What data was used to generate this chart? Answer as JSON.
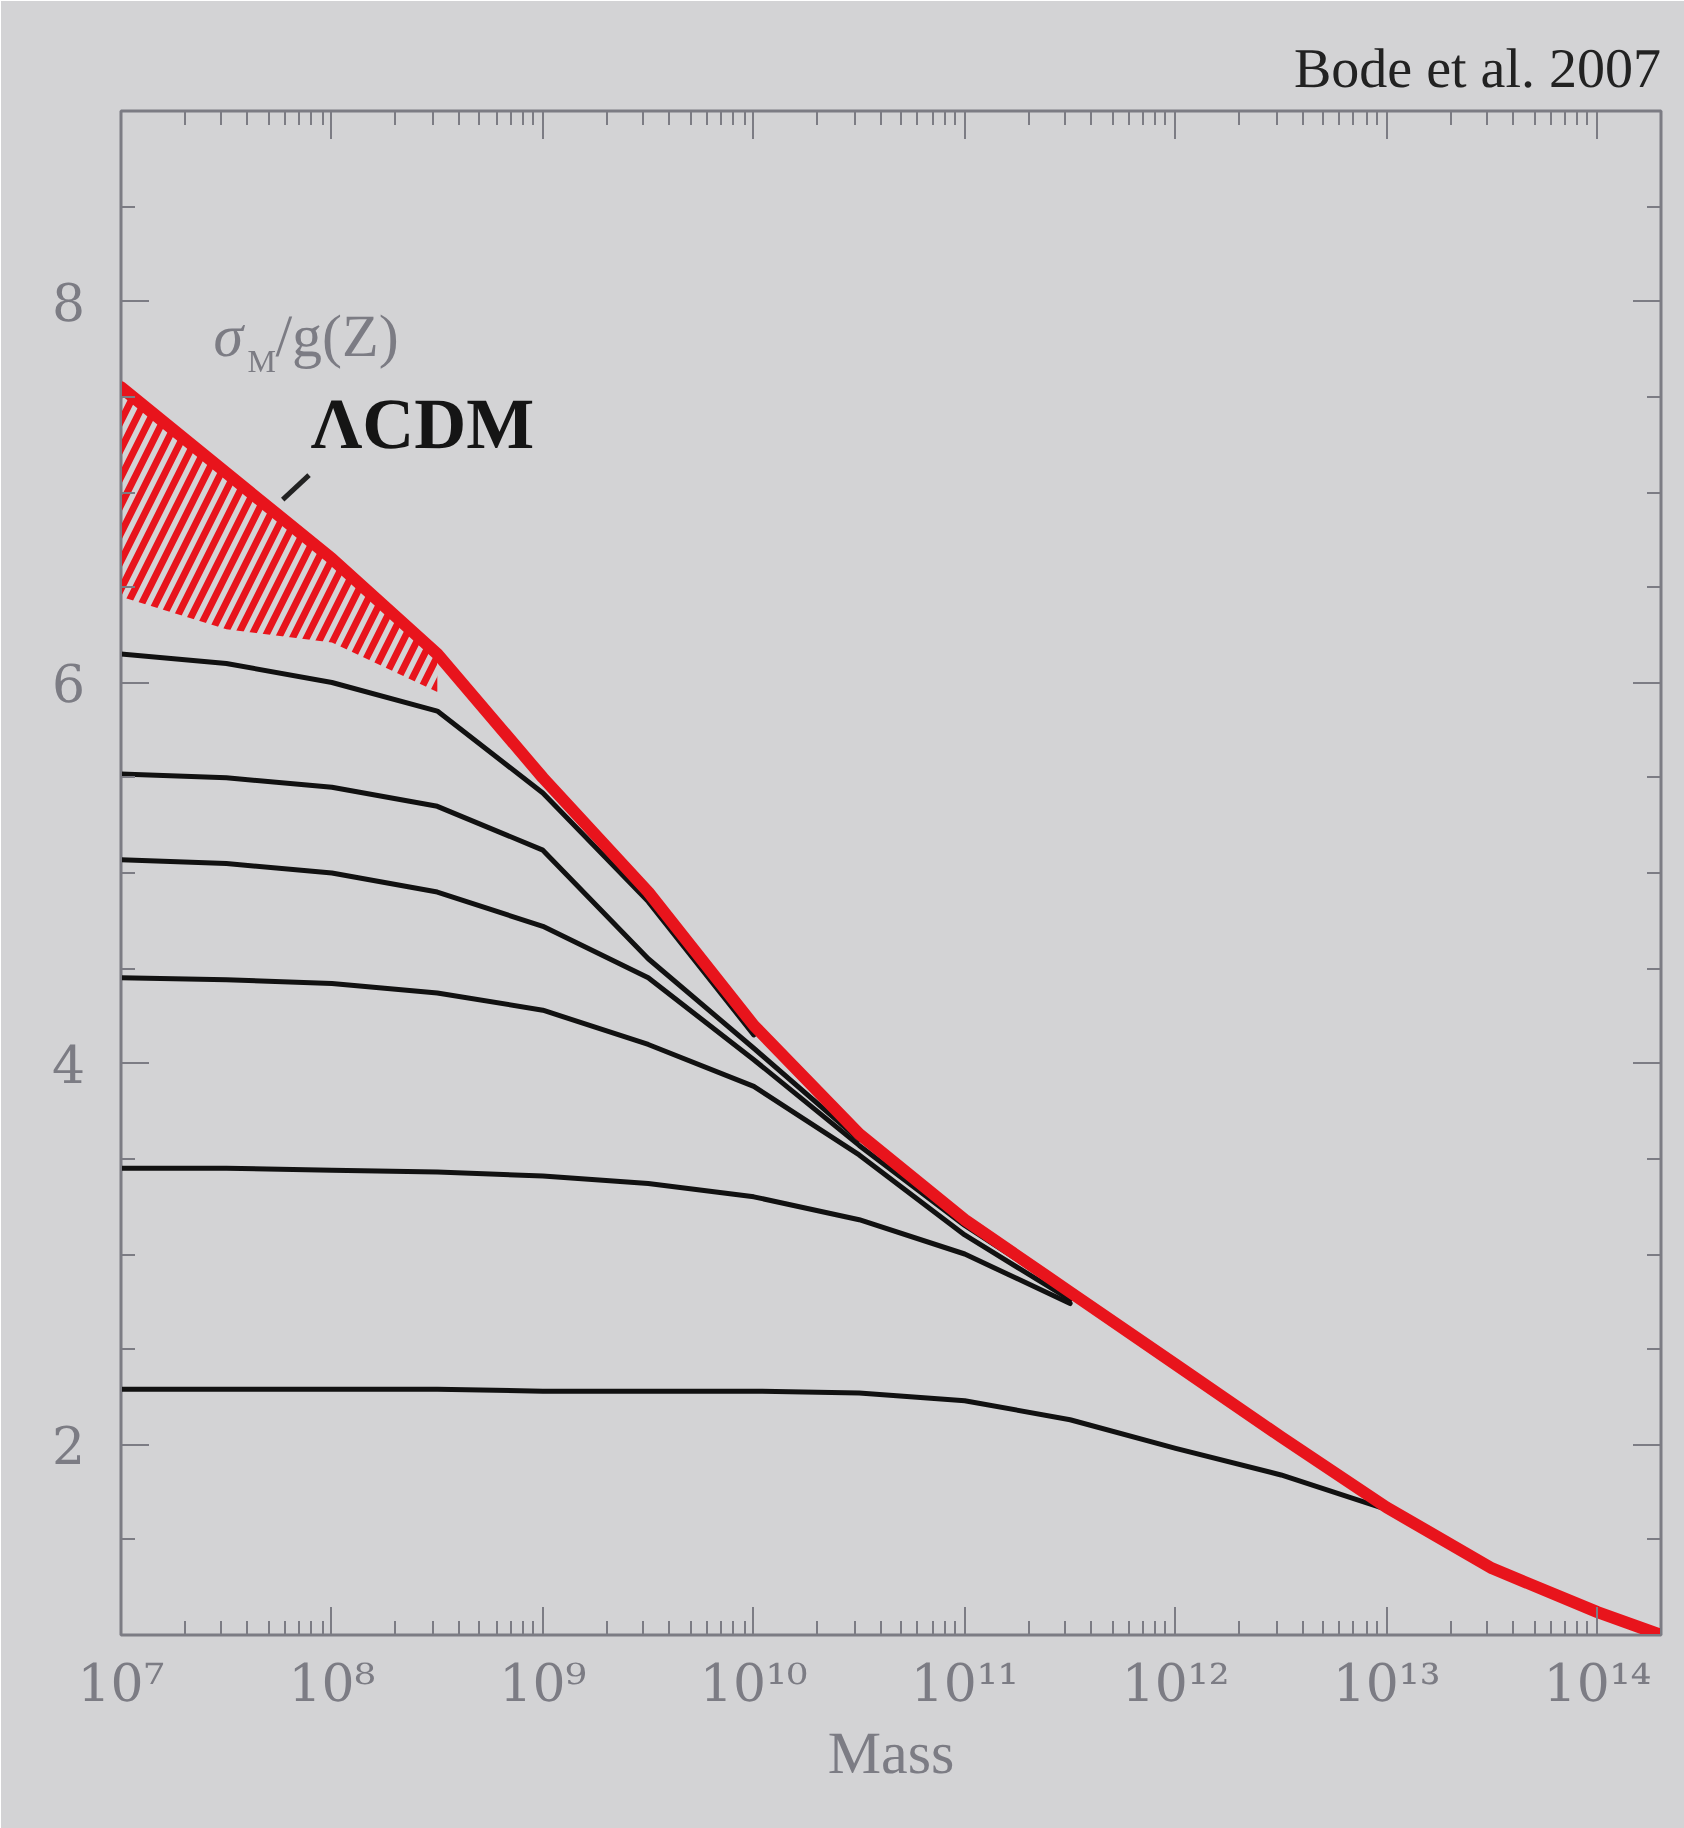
{
  "chart_data": {
    "type": "line",
    "xlabel": "Mass",
    "ylabel": "σ$_{M}$/g(Z)",
    "annotations": [
      "Bode et al. 2007",
      "ΛCDM"
    ],
    "x": [
      10000000.0,
      31600000.0,
      100000000.0,
      316000000.0,
      1000000000.0,
      3160000000.0,
      10000000000.0,
      31600000000.0,
      100000000000.0,
      316000000000.0,
      1000000000000.0,
      3160000000000.0,
      10000000000000.0,
      31600000000000.0,
      100000000000000.0,
      200000000000000.0
    ],
    "series": [
      {
        "color": "#111111",
        "values": [
          6.15,
          6.1,
          6.0,
          5.85,
          5.42,
          4.85,
          4.15,
          null,
          null,
          null,
          null,
          null,
          null,
          null,
          null,
          null
        ]
      },
      {
        "color": "#111111",
        "values": [
          5.52,
          5.5,
          5.45,
          5.35,
          5.12,
          4.55,
          4.08,
          3.6,
          null,
          null,
          null,
          null,
          null,
          null,
          null,
          null
        ]
      },
      {
        "color": "#111111",
        "values": [
          5.07,
          5.05,
          5.0,
          4.9,
          4.72,
          4.45,
          4.02,
          3.57,
          3.15,
          2.79,
          null,
          null,
          null,
          null,
          null,
          null
        ]
      },
      {
        "color": "#111111",
        "values": [
          4.45,
          4.44,
          4.42,
          4.37,
          4.28,
          4.1,
          3.88,
          3.52,
          3.1,
          2.76,
          null,
          null,
          null,
          null,
          null,
          null
        ]
      },
      {
        "color": "#111111",
        "values": [
          3.45,
          3.45,
          3.44,
          3.43,
          3.41,
          3.37,
          3.3,
          3.18,
          3.0,
          2.74,
          null,
          null,
          null,
          null,
          null,
          null
        ]
      },
      {
        "color": "#111111",
        "values": [
          2.29,
          2.29,
          2.29,
          2.29,
          2.28,
          2.28,
          2.28,
          2.27,
          2.23,
          2.13,
          1.98,
          1.84,
          1.66,
          null,
          null,
          null
        ]
      },
      {
        "color": "#e8141c",
        "values": [
          7.55,
          7.1,
          6.65,
          6.15,
          5.5,
          4.9,
          4.2,
          3.63,
          3.18,
          2.8,
          2.42,
          2.04,
          1.67,
          1.35,
          1.12,
          1.0
        ],
        "lower": [
          6.45,
          6.28,
          6.21,
          5.95,
          null,
          null,
          null,
          null,
          null,
          null,
          null,
          null,
          null,
          null,
          null,
          null
        ],
        "upper": [
          7.55,
          7.1,
          6.65,
          6.15,
          null,
          null,
          null,
          null,
          null,
          null,
          null,
          null,
          null,
          null,
          null,
          null
        ]
      }
    ],
    "xlim": [
      10000000.0,
      200000000000000.0
    ],
    "xticks": [
      {
        "value": 10000000.0,
        "label": "10⁷"
      },
      {
        "value": 100000000.0,
        "label": "10⁸"
      },
      {
        "value": 1000000000.0,
        "label": "10⁹"
      },
      {
        "value": 10000000000.0,
        "label": "10¹⁰"
      },
      {
        "value": 100000000000.0,
        "label": "10¹¹"
      },
      {
        "value": 1000000000000.0,
        "label": "10¹²"
      },
      {
        "value": 10000000000000.0,
        "label": "10¹³"
      },
      {
        "value": 100000000000000.0,
        "label": "10¹⁴"
      }
    ],
    "ylim": [
      1,
      9
    ],
    "yticks": [
      {
        "value": 1.5,
        "label": null
      },
      2,
      {
        "value": 2.5,
        "label": null
      },
      {
        "value": 3,
        "label": null
      },
      {
        "value": 3.5,
        "label": null
      },
      4,
      {
        "value": 4.5,
        "label": null
      },
      {
        "value": 5,
        "label": null
      },
      {
        "value": 5.5,
        "label": null
      },
      6,
      {
        "value": 6.5,
        "label": null
      },
      {
        "value": 7,
        "label": null
      },
      {
        "value": 7.5,
        "label": null
      },
      8,
      {
        "value": 8.5,
        "label": null
      }
    ],
    "log": "x",
    "grid": false,
    "line_style": "solid",
    "marker": "none"
  }
}
